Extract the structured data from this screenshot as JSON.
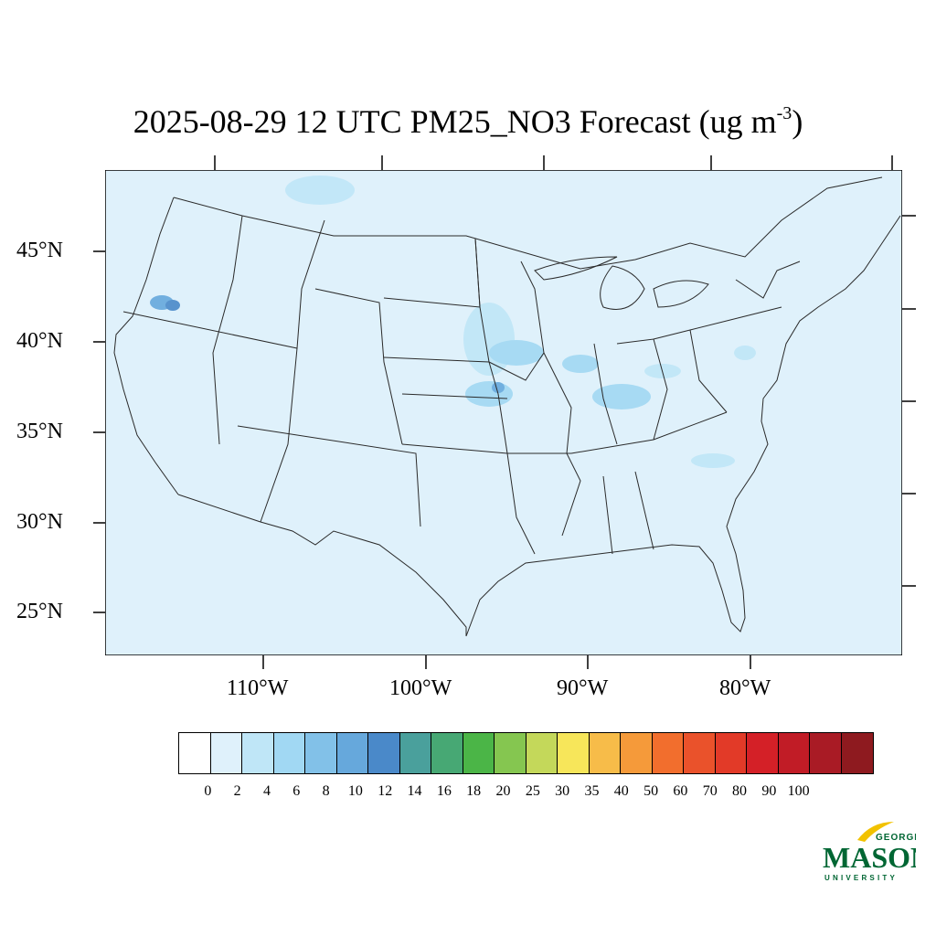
{
  "title": {
    "main": "2025-08-29 12 UTC PM25_NO3 Forecast (ug m",
    "exponent": "-3",
    "suffix": ")"
  },
  "map": {
    "ocean_land_fill": "#dff1fb",
    "boundary_color": "#2a2a2a",
    "lat_labels": [
      "45°N",
      "40°N",
      "35°N",
      "30°N",
      "25°N"
    ],
    "lon_labels": [
      "110°W",
      "100°W",
      "90°W",
      "80°W"
    ]
  },
  "legend": {
    "colors": [
      "#ffffff",
      "#dff1fb",
      "#bfe6f7",
      "#a1d8f3",
      "#82c1e8",
      "#66a8dc",
      "#4a89c9",
      "#4aa09c",
      "#47a874",
      "#4bb547",
      "#85c650",
      "#c4d85a",
      "#f7e65a",
      "#f7bc49",
      "#f59a3a",
      "#f26e2d",
      "#ea522b",
      "#e23a28",
      "#d42027",
      "#c11c26",
      "#a91b25",
      "#8e1a1f"
    ],
    "labels": [
      "0",
      "2",
      "4",
      "6",
      "8",
      "10",
      "12",
      "14",
      "16",
      "18",
      "20",
      "25",
      "30",
      "35",
      "40",
      "50",
      "60",
      "70",
      "80",
      "90",
      "100"
    ]
  },
  "logo": {
    "top_word": "GEORGE",
    "main_word": "MASON",
    "bottom_word": "UNIVERSITY",
    "green": "#006633",
    "gold": "#f2c200"
  }
}
